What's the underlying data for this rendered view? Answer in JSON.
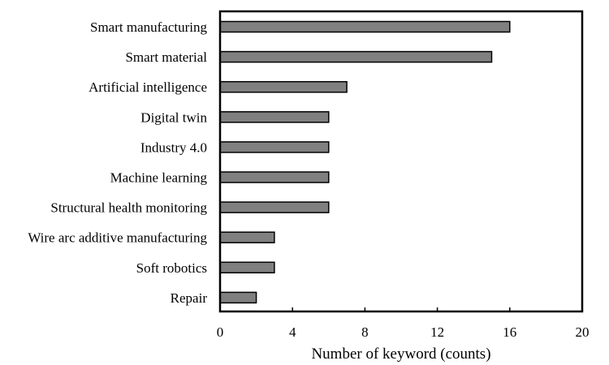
{
  "chart_data": {
    "type": "bar",
    "orientation": "horizontal",
    "categories": [
      "Smart manufacturing",
      "Smart material",
      "Artificial intelligence",
      "Digital twin",
      "Industry 4.0",
      "Machine learning",
      "Structural health monitoring",
      "Wire arc additive manufacturing",
      "Soft robotics",
      "Repair"
    ],
    "values": [
      16,
      15,
      7,
      6,
      6,
      6,
      6,
      3,
      3,
      2
    ],
    "xlabel": "Number of keyword (counts)",
    "ylabel": "",
    "xlim": [
      0,
      20
    ],
    "xticks": [
      0,
      4,
      8,
      12,
      16,
      20
    ],
    "grid": false,
    "legend": "none",
    "bar_color": "#808080",
    "bar_edge_color": "#000000"
  }
}
